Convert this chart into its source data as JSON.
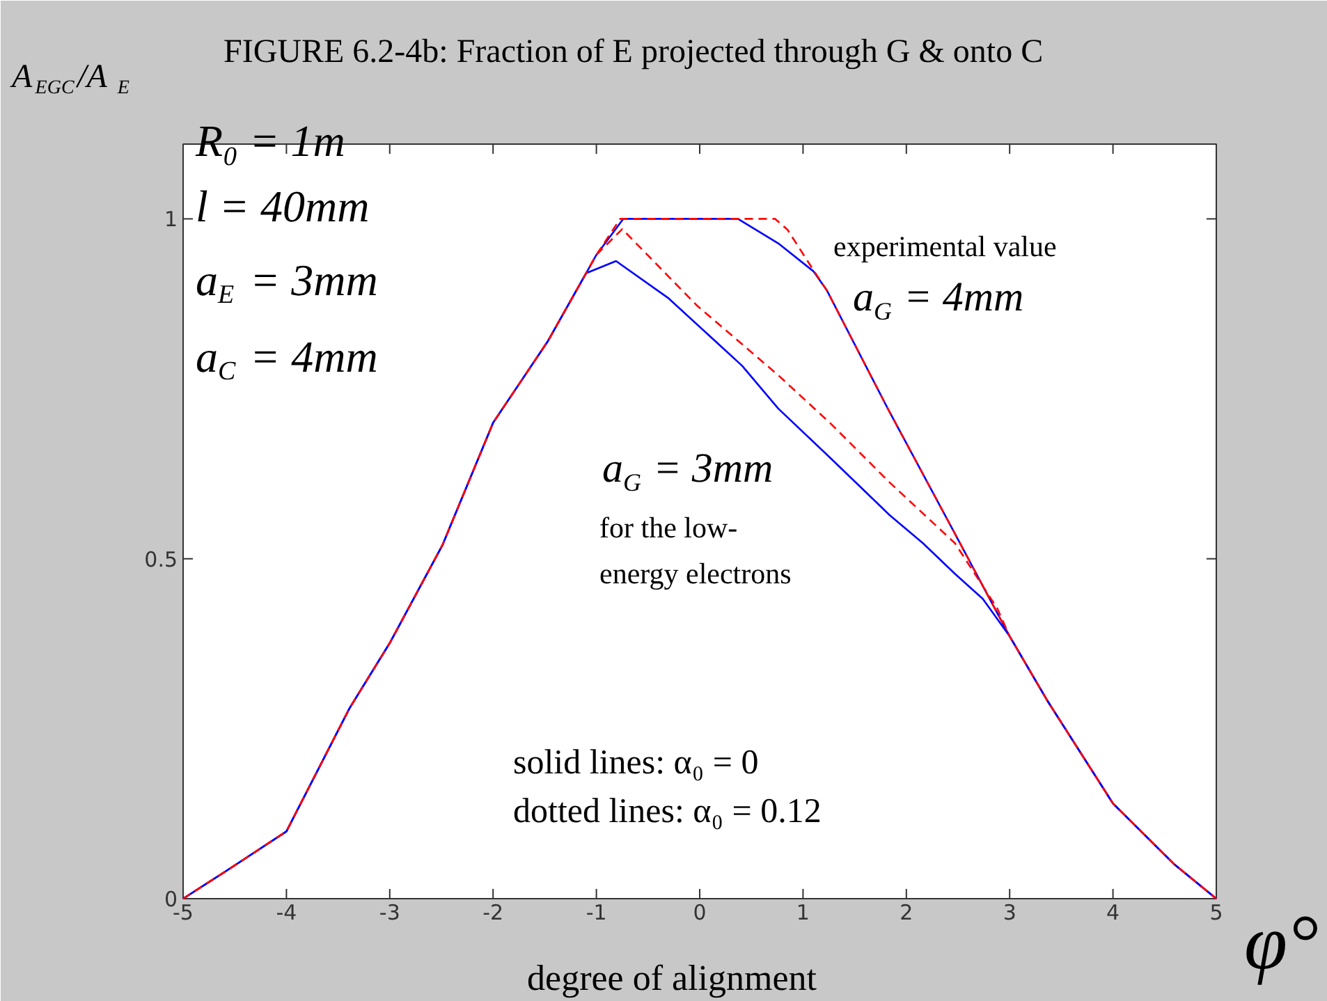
{
  "chart_data": {
    "type": "line",
    "title": "FIGURE 6.2-4b: Fraction of E projected through G & onto C",
    "xlabel": "degree of alignment",
    "ylabel": "A$_{EGC}$/A$_{E}$",
    "xlim": [
      -5,
      5
    ],
    "ylim": [
      0,
      1.11
    ],
    "xticks": [
      -5,
      -4,
      -3,
      -2,
      -1,
      0,
      1,
      2,
      3,
      4,
      5
    ],
    "yticks": [
      0,
      0.5,
      1
    ],
    "grid": false,
    "annotations": [
      "R₀ = 1m",
      "l = 40mm",
      "a$_{E}$ = 3mm",
      "a$_{C}$ = 4mm",
      "experimental value",
      "a$_{G}$ = 4mm",
      "a$_{G}$ = 3mm",
      "for the low-",
      "energy electrons",
      "solid lines:   α₀ = 0",
      "dotted lines: α₀ = 0.12",
      "φ°"
    ],
    "series": [
      {
        "color": "#0000ff",
        "line_style": "solid",
        "x": [
          -5,
          -4.55,
          -4,
          -3.39,
          -3,
          -2.49,
          -2,
          -1.47,
          -1.1,
          -1.0,
          -0.74,
          0.37,
          0.76,
          1.1,
          1.23,
          1.82,
          2.47,
          3.0,
          3.37,
          4.0,
          4.59,
          5
        ],
        "values": [
          0,
          0.044,
          0.099,
          0.28,
          0.376,
          0.52,
          0.7,
          0.82,
          0.92,
          0.947,
          1,
          1,
          0.964,
          0.923,
          0.895,
          0.721,
          0.537,
          0.386,
          0.29,
          0.14,
          0.051,
          0
        ]
      },
      {
        "color": "#ff0000",
        "line_style": "dashed",
        "x": [
          -5,
          -4.55,
          -4,
          -3.39,
          -3,
          -2.49,
          -2,
          -1.47,
          -1.1,
          -1.0,
          -0.77,
          0.73,
          0.85,
          1.12,
          1.23,
          1.82,
          2.47,
          3.0,
          3.37,
          4.0,
          4.59,
          5
        ],
        "values": [
          0,
          0.044,
          0.099,
          0.28,
          0.376,
          0.52,
          0.7,
          0.82,
          0.92,
          0.947,
          1,
          1,
          0.984,
          0.92,
          0.895,
          0.721,
          0.537,
          0.386,
          0.29,
          0.14,
          0.051,
          0
        ]
      },
      {
        "color": "#0000ff",
        "line_style": "solid",
        "x": [
          -5,
          -4.55,
          -4,
          -3.39,
          -3,
          -2.49,
          -2,
          -1.47,
          -1.1,
          -0.81,
          -0.3,
          0.41,
          0.76,
          1.26,
          1.84,
          2.16,
          2.47,
          2.74,
          3.0,
          3.37,
          4.0,
          4.59,
          5
        ],
        "values": [
          0,
          0.044,
          0.099,
          0.28,
          0.376,
          0.52,
          0.7,
          0.82,
          0.92,
          0.938,
          0.883,
          0.784,
          0.721,
          0.649,
          0.564,
          0.523,
          0.478,
          0.441,
          0.386,
          0.29,
          0.14,
          0.051,
          0
        ]
      },
      {
        "color": "#ff0000",
        "line_style": "dashed",
        "x": [
          -5,
          -4.55,
          -4,
          -3.39,
          -3,
          -2.49,
          -2,
          -1.47,
          -1.1,
          -1.0,
          -0.75,
          -0.03,
          0.76,
          1.26,
          1.84,
          2.47,
          2.88,
          3.0,
          3.37,
          4.0,
          4.59,
          5
        ],
        "values": [
          0,
          0.044,
          0.099,
          0.28,
          0.376,
          0.52,
          0.7,
          0.82,
          0.92,
          0.947,
          0.985,
          0.873,
          0.77,
          0.7,
          0.612,
          0.523,
          0.427,
          0.386,
          0.29,
          0.14,
          0.051,
          0
        ]
      }
    ]
  }
}
